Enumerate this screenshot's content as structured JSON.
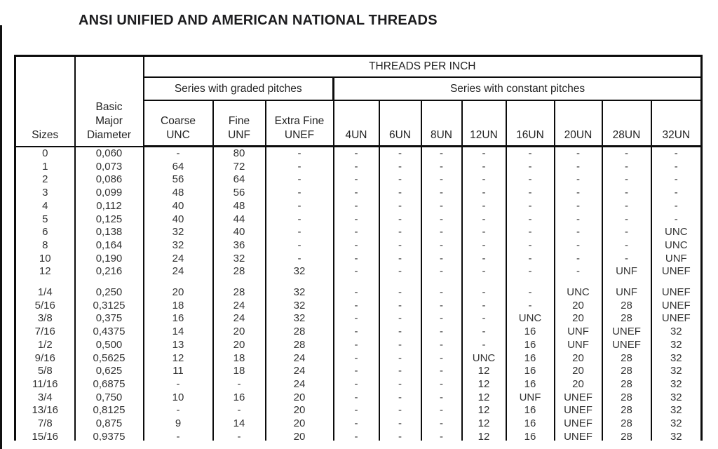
{
  "title": "ANSI UNIFIED AND AMERICAN NATIONAL THREADS",
  "table": {
    "corner": {
      "sizes": "Sizes",
      "basic_major_diameter": "Basic\nMajor\nDiameter"
    },
    "top_header": "THREADS PER INCH",
    "group_headers": {
      "graded": "Series with graded pitches",
      "constant": "Series with constant pitches"
    },
    "column_headers": {
      "coarse": "Coarse\nUNC",
      "fine": "Fine\nUNF",
      "extra_fine": "Extra Fine\nUNEF",
      "un4": "4UN",
      "un6": "6UN",
      "un8": "8UN",
      "un12": "12UN",
      "un16": "16UN",
      "un20": "20UN",
      "un28": "28UN",
      "un32": "32UN"
    },
    "rows": [
      {
        "size": "0",
        "diameter": "0,060",
        "values": [
          "-",
          "80",
          "-",
          "-",
          "-",
          "-",
          "-",
          "-",
          "-",
          "-",
          "-"
        ]
      },
      {
        "size": "1",
        "diameter": "0,073",
        "values": [
          "64",
          "72",
          "-",
          "-",
          "-",
          "-",
          "-",
          "-",
          "-",
          "-",
          "-"
        ]
      },
      {
        "size": "2",
        "diameter": "0,086",
        "values": [
          "56",
          "64",
          "-",
          "-",
          "-",
          "-",
          "-",
          "-",
          "-",
          "-",
          "-"
        ]
      },
      {
        "size": "3",
        "diameter": "0,099",
        "values": [
          "48",
          "56",
          "-",
          "-",
          "-",
          "-",
          "-",
          "-",
          "-",
          "-",
          "-"
        ]
      },
      {
        "size": "4",
        "diameter": "0,112",
        "values": [
          "40",
          "48",
          "-",
          "-",
          "-",
          "-",
          "-",
          "-",
          "-",
          "-",
          "-"
        ]
      },
      {
        "size": "5",
        "diameter": "0,125",
        "values": [
          "40",
          "44",
          "-",
          "-",
          "-",
          "-",
          "-",
          "-",
          "-",
          "-",
          "-"
        ]
      },
      {
        "size": "6",
        "diameter": "0,138",
        "values": [
          "32",
          "40",
          "-",
          "-",
          "-",
          "-",
          "-",
          "-",
          "-",
          "-",
          "UNC"
        ]
      },
      {
        "size": "8",
        "diameter": "0,164",
        "values": [
          "32",
          "36",
          "-",
          "-",
          "-",
          "-",
          "-",
          "-",
          "-",
          "-",
          "UNC"
        ]
      },
      {
        "size": "10",
        "diameter": "0,190",
        "values": [
          "24",
          "32",
          "-",
          "-",
          "-",
          "-",
          "-",
          "-",
          "-",
          "-",
          "UNF"
        ]
      },
      {
        "size": "12",
        "diameter": "0,216",
        "values": [
          "24",
          "28",
          "32",
          "-",
          "-",
          "-",
          "-",
          "-",
          "-",
          "UNF",
          "UNEF"
        ]
      },
      {
        "size": "1/4",
        "diameter": "0,250",
        "values": [
          "20",
          "28",
          "32",
          "-",
          "-",
          "-",
          "-",
          "-",
          "UNC",
          "UNF",
          "UNEF"
        ],
        "gap_before": true
      },
      {
        "size": "5/16",
        "diameter": "0,3125",
        "values": [
          "18",
          "24",
          "32",
          "-",
          "-",
          "-",
          "-",
          "-",
          "20",
          "28",
          "UNEF"
        ]
      },
      {
        "size": "3/8",
        "diameter": "0,375",
        "values": [
          "16",
          "24",
          "32",
          "-",
          "-",
          "-",
          "-",
          "UNC",
          "20",
          "28",
          "UNEF"
        ]
      },
      {
        "size": "7/16",
        "diameter": "0,4375",
        "values": [
          "14",
          "20",
          "28",
          "-",
          "-",
          "-",
          "-",
          "16",
          "UNF",
          "UNEF",
          "32"
        ]
      },
      {
        "size": "1/2",
        "diameter": "0,500",
        "values": [
          "13",
          "20",
          "28",
          "-",
          "-",
          "-",
          "-",
          "16",
          "UNF",
          "UNEF",
          "32"
        ]
      },
      {
        "size": "9/16",
        "diameter": "0,5625",
        "values": [
          "12",
          "18",
          "24",
          "-",
          "-",
          "-",
          "UNC",
          "16",
          "20",
          "28",
          "32"
        ]
      },
      {
        "size": "5/8",
        "diameter": "0,625",
        "values": [
          "11",
          "18",
          "24",
          "-",
          "-",
          "-",
          "12",
          "16",
          "20",
          "28",
          "32"
        ]
      },
      {
        "size": "11/16",
        "diameter": "0,6875",
        "values": [
          "-",
          "-",
          "24",
          "-",
          "-",
          "-",
          "12",
          "16",
          "20",
          "28",
          "32"
        ]
      },
      {
        "size": "3/4",
        "diameter": "0,750",
        "values": [
          "10",
          "16",
          "20",
          "-",
          "-",
          "-",
          "12",
          "UNF",
          "UNEF",
          "28",
          "32"
        ]
      },
      {
        "size": "13/16",
        "diameter": "0,8125",
        "values": [
          "-",
          "-",
          "20",
          "-",
          "-",
          "-",
          "12",
          "16",
          "UNEF",
          "28",
          "32"
        ]
      },
      {
        "size": "7/8",
        "diameter": "0,875",
        "values": [
          "9",
          "14",
          "20",
          "-",
          "-",
          "-",
          "12",
          "16",
          "UNEF",
          "28",
          "32"
        ]
      },
      {
        "size": "15/16",
        "diameter": "0,9375",
        "values": [
          "-",
          "-",
          "20",
          "-",
          "-",
          "-",
          "12",
          "16",
          "UNEF",
          "28",
          "32"
        ]
      }
    ]
  },
  "colors": {
    "border": "#0c0c0c",
    "text": "#333333",
    "background": "#ffffff"
  }
}
